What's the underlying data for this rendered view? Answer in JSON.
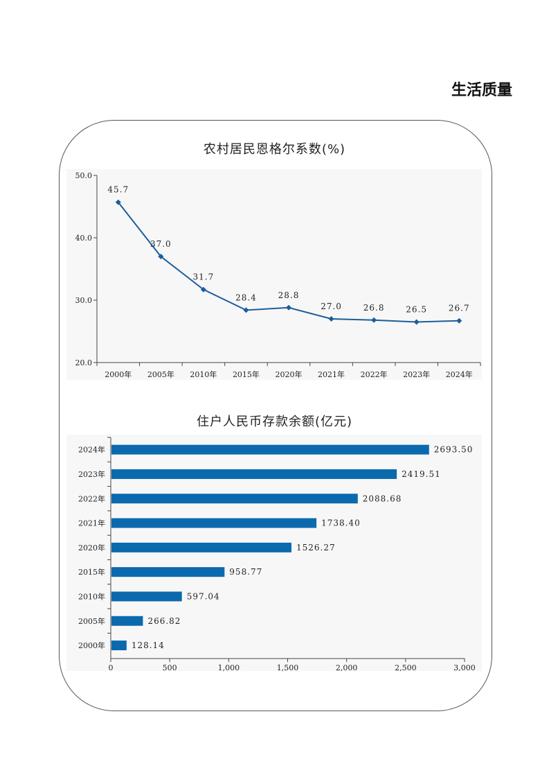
{
  "page": {
    "heading": "生活质量"
  },
  "colors": {
    "series": "#1a5e9c",
    "bar": "#0b6aad",
    "plot_bg": "#f7f7f7",
    "axis": "#444444"
  },
  "chart_data": [
    {
      "type": "line",
      "title": "农村居民恩格尔系数(%)",
      "categories": [
        "2000年",
        "2005年",
        "2010年",
        "2015年",
        "2020年",
        "2021年",
        "2022年",
        "2023年",
        "2024年"
      ],
      "values": [
        45.7,
        37.0,
        31.7,
        28.4,
        28.8,
        27.0,
        26.8,
        26.5,
        26.7
      ],
      "value_labels": [
        "45.7",
        "37.0",
        "31.7",
        "28.4",
        "28.8",
        "27.0",
        "26.8",
        "26.5",
        "26.7"
      ],
      "ylim": [
        20,
        50
      ],
      "yticks": [
        "20.0",
        "30.0",
        "40.0",
        "50.0"
      ],
      "marker": "diamond",
      "grid": false
    },
    {
      "type": "bar",
      "orientation": "horizontal",
      "title": "住户人民币存款余额(亿元)",
      "categories": [
        "2024年",
        "2023年",
        "2022年",
        "2021年",
        "2020年",
        "2015年",
        "2010年",
        "2005年",
        "2000年"
      ],
      "values": [
        2693.5,
        2419.51,
        2088.68,
        1738.4,
        1526.27,
        958.77,
        597.04,
        266.82,
        128.14
      ],
      "value_labels": [
        "2693.50",
        "2419.51",
        "2088.68",
        "1738.40",
        "1526.27",
        "958.77",
        "597.04",
        "266.82",
        "128.14"
      ],
      "xlim": [
        0,
        3000
      ],
      "xticks": [
        "0",
        "500",
        "1,000",
        "1,500",
        "2,000",
        "2,500",
        "3,000"
      ],
      "grid": false
    }
  ]
}
